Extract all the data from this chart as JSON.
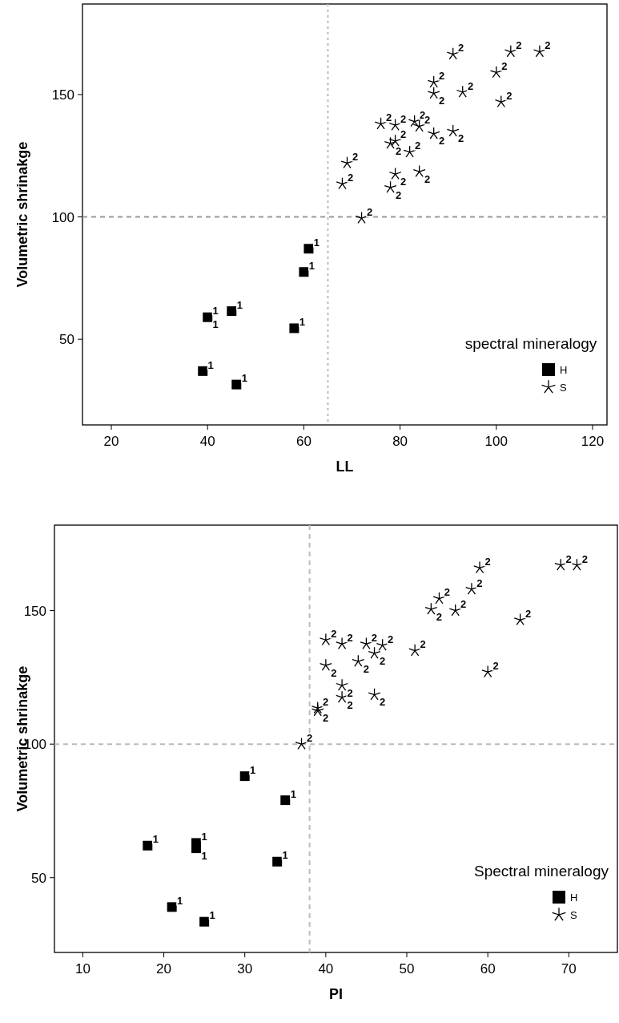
{
  "chart_data": [
    {
      "type": "scatter",
      "xlabel": "LL",
      "ylabel": "Volumetric shrinakge",
      "legend_title": "spectral mineralogy",
      "legend": "bottom right",
      "xlim": [
        14,
        123
      ],
      "ylim": [
        15,
        187
      ],
      "xticks": [
        20,
        40,
        60,
        80,
        100,
        120
      ],
      "yticks": [
        50,
        100,
        150
      ],
      "grid": false,
      "ref_lines": [
        {
          "axis": "x",
          "value": 65,
          "color": "#bbbbbb",
          "line_style": "dotted"
        },
        {
          "axis": "y",
          "value": 100,
          "color": "#999999",
          "line_style": "dashed"
        }
      ],
      "series": [
        {
          "name": "H",
          "color": "#000000",
          "marker": "square",
          "x": [
            61,
            60,
            40,
            45,
            58,
            39,
            46
          ],
          "values": [
            87,
            77.5,
            59,
            61.5,
            54.5,
            37,
            31.5
          ]
        },
        {
          "name": "S",
          "color": "#000000",
          "marker": "cross",
          "x": [
            91,
            103,
            109,
            100,
            87,
            87,
            93,
            101,
            76,
            79,
            83,
            84,
            87,
            91,
            78,
            79,
            82,
            69,
            79,
            84,
            68,
            78,
            72
          ],
          "values": [
            166.5,
            167.5,
            167.5,
            159,
            155,
            150.5,
            151,
            147,
            138,
            137.5,
            139,
            137,
            134,
            135,
            130,
            131,
            126.5,
            122,
            117.5,
            118.5,
            113.5,
            112,
            99.5
          ]
        }
      ],
      "annotations": [
        {
          "text": "1",
          "x": 61,
          "y": 87
        },
        {
          "text": "1",
          "x": 60,
          "y": 77.5
        },
        {
          "text": "1",
          "x": 40,
          "y": 59
        },
        {
          "text": "1",
          "x": 40,
          "y": 59
        },
        {
          "text": "1",
          "x": 45,
          "y": 61.5
        },
        {
          "text": "1",
          "x": 58,
          "y": 54.5
        },
        {
          "text": "1",
          "x": 39,
          "y": 37
        },
        {
          "text": "1",
          "x": 46,
          "y": 31.5
        },
        {
          "text": "2",
          "x": 91,
          "y": 166.5
        },
        {
          "text": "2",
          "x": 103,
          "y": 167.5
        },
        {
          "text": "2",
          "x": 109,
          "y": 167.5
        },
        {
          "text": "2",
          "x": 100,
          "y": 159
        },
        {
          "text": "2",
          "x": 87,
          "y": 155
        },
        {
          "text": "2",
          "x": 87,
          "y": 150.5
        },
        {
          "text": "2",
          "x": 93,
          "y": 151
        },
        {
          "text": "2",
          "x": 101,
          "y": 147
        },
        {
          "text": "2",
          "x": 76,
          "y": 138
        },
        {
          "text": "2",
          "x": 79,
          "y": 137.5
        },
        {
          "text": "2",
          "x": 83,
          "y": 139
        },
        {
          "text": "2",
          "x": 84,
          "y": 137
        },
        {
          "text": "2",
          "x": 87,
          "y": 134
        },
        {
          "text": "2",
          "x": 91,
          "y": 135
        },
        {
          "text": "2",
          "x": 78,
          "y": 130
        },
        {
          "text": "2",
          "x": 79,
          "y": 131
        },
        {
          "text": "2",
          "x": 82,
          "y": 126.5
        },
        {
          "text": "2",
          "x": 69,
          "y": 122
        },
        {
          "text": "2",
          "x": 79,
          "y": 117.5
        },
        {
          "text": "2",
          "x": 84,
          "y": 118.5
        },
        {
          "text": "2",
          "x": 68,
          "y": 113.5
        },
        {
          "text": "2",
          "x": 78,
          "y": 112
        },
        {
          "text": "2",
          "x": 72,
          "y": 99.5
        }
      ]
    },
    {
      "type": "scatter",
      "xlabel": "PI",
      "ylabel": "Volumetric shrinakge",
      "legend_title": "Spectral mineralogy",
      "legend": "bottom right",
      "xlim": [
        6.5,
        76
      ],
      "ylim": [
        22,
        182
      ],
      "xticks": [
        10,
        20,
        30,
        40,
        50,
        60,
        70
      ],
      "yticks": [
        50,
        100,
        150
      ],
      "grid": false,
      "ref_lines": [
        {
          "axis": "x",
          "value": 38,
          "color": "#bbbbbb",
          "line_style": "dashed"
        },
        {
          "axis": "y",
          "value": 100,
          "color": "#bbbbbb",
          "line_style": "dashed"
        }
      ],
      "series": [
        {
          "name": "H",
          "color": "#000000",
          "marker": "square",
          "x": [
            30,
            35,
            18,
            24,
            24,
            34,
            21,
            25
          ],
          "values": [
            88,
            79,
            62,
            63,
            61,
            56,
            39,
            33.5
          ]
        },
        {
          "name": "S",
          "color": "#000000",
          "marker": "cross",
          "x": [
            59,
            69,
            71,
            58,
            54,
            53,
            56,
            64,
            40,
            42,
            45,
            47,
            46,
            51,
            40,
            44,
            42,
            42,
            46,
            39,
            39,
            60,
            37
          ],
          "values": [
            166,
            167,
            167,
            158,
            154.5,
            150.5,
            150,
            146.5,
            139,
            137.5,
            137.5,
            137,
            134,
            135,
            129.5,
            131,
            122,
            117.5,
            118.5,
            113.5,
            112.5,
            127,
            100
          ]
        }
      ],
      "annotations": [
        {
          "text": "1",
          "x": 30,
          "y": 88
        },
        {
          "text": "1",
          "x": 35,
          "y": 79
        },
        {
          "text": "1",
          "x": 18,
          "y": 62
        },
        {
          "text": "1",
          "x": 24,
          "y": 63
        },
        {
          "text": "1",
          "x": 24,
          "y": 61
        },
        {
          "text": "1",
          "x": 34,
          "y": 56
        },
        {
          "text": "1",
          "x": 21,
          "y": 39
        },
        {
          "text": "1",
          "x": 25,
          "y": 33.5
        },
        {
          "text": "2",
          "x": 59,
          "y": 166
        },
        {
          "text": "2",
          "x": 69,
          "y": 167
        },
        {
          "text": "2",
          "x": 71,
          "y": 167
        },
        {
          "text": "2",
          "x": 58,
          "y": 158
        },
        {
          "text": "2",
          "x": 54,
          "y": 154.5
        },
        {
          "text": "2",
          "x": 53,
          "y": 150.5
        },
        {
          "text": "2",
          "x": 56,
          "y": 150
        },
        {
          "text": "2",
          "x": 64,
          "y": 146.5
        },
        {
          "text": "2",
          "x": 40,
          "y": 139
        },
        {
          "text": "2",
          "x": 42,
          "y": 137.5
        },
        {
          "text": "2",
          "x": 45,
          "y": 137.5
        },
        {
          "text": "2",
          "x": 47,
          "y": 137
        },
        {
          "text": "2",
          "x": 46,
          "y": 134
        },
        {
          "text": "2",
          "x": 51,
          "y": 135
        },
        {
          "text": "2",
          "x": 40,
          "y": 129.5
        },
        {
          "text": "2",
          "x": 44,
          "y": 131
        },
        {
          "text": "2",
          "x": 42,
          "y": 122
        },
        {
          "text": "2",
          "x": 42,
          "y": 117.5
        },
        {
          "text": "2",
          "x": 46,
          "y": 118.5
        },
        {
          "text": "2",
          "x": 39,
          "y": 113.5
        },
        {
          "text": "2",
          "x": 39,
          "y": 112.5
        },
        {
          "text": "2",
          "x": 60,
          "y": 127
        },
        {
          "text": "2",
          "x": 37,
          "y": 100
        }
      ]
    }
  ]
}
